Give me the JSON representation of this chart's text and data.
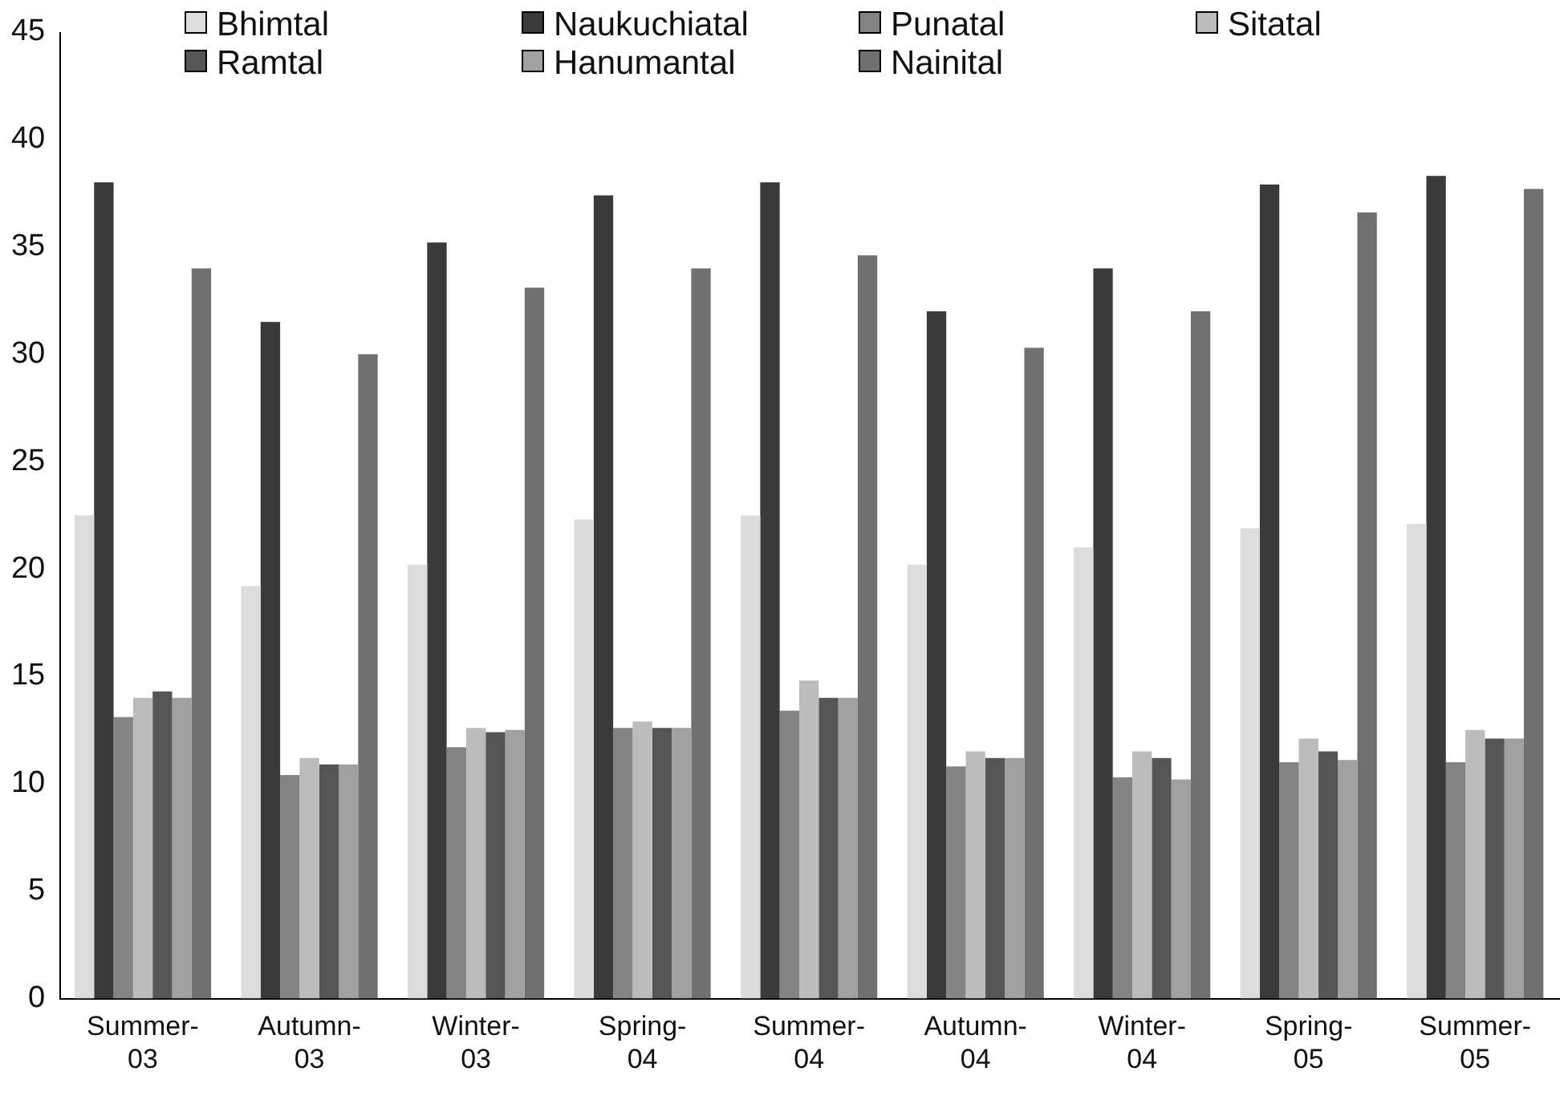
{
  "chart_data": {
    "type": "bar",
    "categories": [
      "Summer-03",
      "Autumn-03",
      "Winter-03",
      "Spring-04",
      "Summer-04",
      "Autumn-04",
      "Winter-04",
      "Spring-05",
      "Summer-05"
    ],
    "series": [
      {
        "name": "Bhimtal",
        "color": "#dcdcdc",
        "values": [
          22.5,
          19.2,
          20.2,
          22.3,
          22.5,
          20.2,
          21,
          21.9,
          22.1
        ]
      },
      {
        "name": "Naukuchiatal",
        "color": "#3a3a3a",
        "values": [
          38,
          31.5,
          35.2,
          37.4,
          38,
          32,
          34,
          37.9,
          38.3
        ]
      },
      {
        "name": "Punatal",
        "color": "#848484",
        "values": [
          13.1,
          10.4,
          11.7,
          12.6,
          13.4,
          10.8,
          10.3,
          11,
          11
        ]
      },
      {
        "name": "Sitatal",
        "color": "#bcbcbc",
        "values": [
          14,
          11.2,
          12.6,
          12.9,
          14.8,
          11.5,
          11.5,
          12.1,
          12.5
        ]
      },
      {
        "name": "Ramtal",
        "color": "#555555",
        "values": [
          14.3,
          10.9,
          12.4,
          12.6,
          14,
          11.2,
          11.2,
          11.5,
          12.1
        ]
      },
      {
        "name": "Hanumantal",
        "color": "#a0a0a0",
        "values": [
          14,
          10.9,
          12.5,
          12.6,
          14,
          11.2,
          10.2,
          11.1,
          12.1
        ]
      },
      {
        "name": "Nainital",
        "color": "#707070",
        "values": [
          34,
          30,
          33.1,
          34,
          34.6,
          30.3,
          32,
          36.6,
          37.7
        ]
      }
    ],
    "ylim": [
      0,
      45
    ],
    "yticks": [
      0,
      5,
      10,
      15,
      20,
      25,
      30,
      35,
      40,
      45
    ],
    "grid": false,
    "legend": "top"
  }
}
